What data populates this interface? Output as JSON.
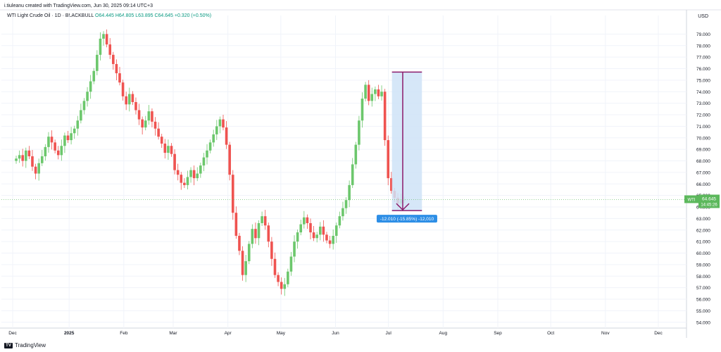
{
  "header": {
    "credit": "i.tiuleanu created with TradingView.com, Jun 30, 2025 09:14 UTC+3",
    "legend_symbol": "WTI Light Crude Oil · 1D · BLACKBULL",
    "legend_ohlc": "O64.445  H64.805  L63.895  C64.645  +0.320 (+0.50%)",
    "currency": "USD"
  },
  "footer": {
    "brand": "TradingView",
    "logo_text": "TV"
  },
  "colors": {
    "up": "#26a69a",
    "up_candle": "#6cc76c",
    "down": "#ef5350",
    "grid": "#f0f3fa",
    "measure_fill": "#cfe3f7",
    "measure_line": "#8b1a6b",
    "label_bg": "#2d8ee6",
    "price_tag": "#5cb85c"
  },
  "chart_data": {
    "type": "candlestick",
    "title": "WTI Light Crude Oil · 1D · BLACKBULL",
    "ylabel": "USD",
    "ylim": [
      53.5,
      80.0
    ],
    "y_ticks": [
      "79.000",
      "78.000",
      "77.000",
      "76.000",
      "75.000",
      "74.000",
      "73.000",
      "72.000",
      "71.000",
      "70.000",
      "69.000",
      "68.000",
      "67.000",
      "66.000",
      "65.000",
      "64.000",
      "63.000",
      "62.000",
      "61.000",
      "60.000",
      "59.000",
      "58.000",
      "57.000",
      "56.000",
      "55.000",
      "54.000"
    ],
    "x_ticks": [
      {
        "label": "Dec",
        "day": 0
      },
      {
        "label": "2025",
        "day": 32
      },
      {
        "label": "Feb",
        "day": 63
      },
      {
        "label": "Mar",
        "day": 91
      },
      {
        "label": "Apr",
        "day": 122
      },
      {
        "label": "May",
        "day": 152
      },
      {
        "label": "Jun",
        "day": 183
      },
      {
        "label": "Jul",
        "day": 213
      },
      {
        "label": "Aug",
        "day": 244
      },
      {
        "label": "Sep",
        "day": 275
      },
      {
        "label": "Oct",
        "day": 305
      },
      {
        "label": "Nov",
        "day": 336
      },
      {
        "label": "Dec",
        "day": 366
      }
    ],
    "series_close": [
      68.2,
      68.5,
      68.0,
      68.9,
      68.4,
      67.5,
      66.9,
      67.8,
      68.4,
      69.2,
      70.1,
      69.6,
      68.9,
      68.5,
      69.3,
      70.2,
      69.8,
      70.4,
      70.8,
      71.5,
      72.4,
      73.2,
      74.0,
      74.9,
      75.8,
      77.2,
      78.6,
      79.0,
      78.1,
      77.2,
      76.4,
      75.6,
      74.8,
      73.6,
      72.9,
      73.8,
      73.1,
      72.4,
      71.6,
      70.9,
      71.5,
      72.3,
      71.4,
      70.8,
      70.1,
      69.5,
      68.7,
      69.3,
      68.6,
      67.2,
      66.8,
      66.1,
      65.9,
      66.6,
      67.2,
      66.5,
      66.9,
      67.6,
      68.3,
      68.9,
      69.6,
      70.3,
      71.0,
      71.6,
      70.9,
      69.4,
      66.8,
      63.5,
      61.5,
      60.2,
      58.1,
      59.3,
      60.8,
      62.1,
      61.3,
      62.6,
      63.2,
      62.4,
      61.0,
      59.5,
      58.1,
      57.5,
      56.9,
      57.3,
      58.4,
      59.7,
      61.0,
      61.8,
      62.5,
      63.1,
      62.6,
      61.8,
      61.3,
      61.6,
      62.3,
      61.6,
      61.1,
      60.8,
      61.5,
      62.4,
      63.2,
      63.9,
      64.6,
      65.9,
      67.7,
      69.4,
      71.5,
      73.4,
      74.6,
      73.2,
      73.8,
      74.2,
      73.6,
      74.0,
      69.8,
      66.5,
      65.4,
      64.8,
      64.3,
      64.6,
      64.645
    ],
    "last_price": {
      "symbol": "WTI",
      "price": "64.645",
      "countdown": "14:45:26"
    },
    "measure": {
      "from_day": 215,
      "to_day": 232,
      "from_price": 75.7,
      "to_price": 63.69,
      "label": "-12.010 (-15.85%) -12,010"
    }
  }
}
